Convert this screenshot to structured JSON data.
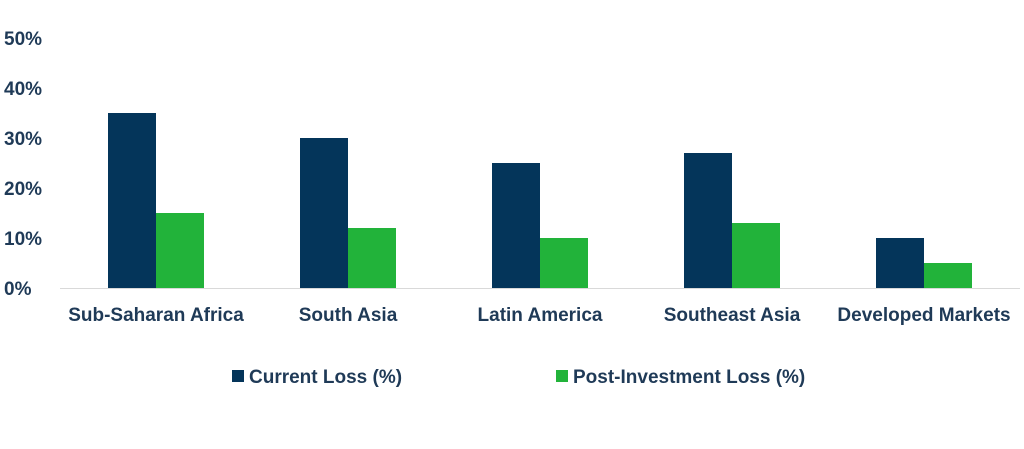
{
  "chart_data": {
    "type": "bar",
    "categories": [
      "Sub-Saharan Africa",
      "South Asia",
      "Latin America",
      "Southeast Asia",
      "Developed Markets"
    ],
    "series": [
      {
        "name": "Current Loss (%)",
        "values": [
          35,
          30,
          25,
          27,
          10
        ],
        "color": "#04355a"
      },
      {
        "name": "Post-Investment Loss (%)",
        "values": [
          15,
          12,
          10,
          13,
          5
        ],
        "color": "#22b33a"
      }
    ],
    "y_ticks": [
      "0%",
      "10%",
      "20%",
      "30%",
      "40%",
      "50%"
    ],
    "ylim": [
      0,
      50
    ],
    "y_unit": "%",
    "grid": false,
    "legend_position": "bottom",
    "title": "",
    "xlabel": "",
    "ylabel": ""
  }
}
